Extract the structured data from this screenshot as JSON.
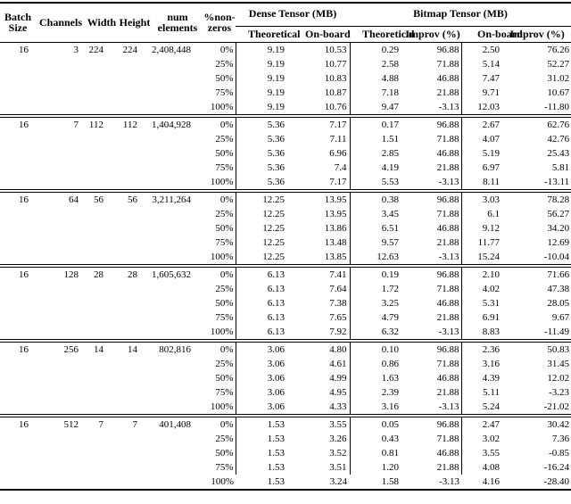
{
  "colors": {
    "text": "#000000",
    "background": "#ffffff",
    "rules": "#000000"
  },
  "table": {
    "header": {
      "batch_size": "Batch\nSize",
      "channels": "Channels",
      "width": "Width",
      "height": "Height",
      "num_elements": "num\nelements",
      "pct_nonzeros": "%non-\nzeros"
    },
    "groups": [
      {
        "label": "Dense Tensor (MB)",
        "span": 2
      },
      {
        "label": "Bitmap Tensor (MB)",
        "span": 4
      }
    ],
    "subheaders": [
      "Theoretical",
      "On-board",
      "Theoretical",
      "Improv (%)",
      "On-board",
      "Improv (%)"
    ],
    "blocks": [
      {
        "batch": "16",
        "channels": "3",
        "width": "224",
        "height": "224",
        "num_elements": "2,408,448",
        "rows": [
          {
            "nonzeros": "0%",
            "dense_theoretical": "9.19",
            "dense_onboard": "10.53",
            "bitmap_theoretical": "0.29",
            "bitmap_improv": "96.88",
            "bitmap_onboard": "2.50",
            "bitmap_onboard_improv": "76.26"
          },
          {
            "nonzeros": "25%",
            "dense_theoretical": "9.19",
            "dense_onboard": "10.77",
            "bitmap_theoretical": "2.58",
            "bitmap_improv": "71.88",
            "bitmap_onboard": "5.14",
            "bitmap_onboard_improv": "52.27"
          },
          {
            "nonzeros": "50%",
            "dense_theoretical": "9.19",
            "dense_onboard": "10.83",
            "bitmap_theoretical": "4.88",
            "bitmap_improv": "46.88",
            "bitmap_onboard": "7.47",
            "bitmap_onboard_improv": "31.02"
          },
          {
            "nonzeros": "75%",
            "dense_theoretical": "9.19",
            "dense_onboard": "10.87",
            "bitmap_theoretical": "7.18",
            "bitmap_improv": "21.88",
            "bitmap_onboard": "9.71",
            "bitmap_onboard_improv": "10.67"
          },
          {
            "nonzeros": "100%",
            "dense_theoretical": "9.19",
            "dense_onboard": "10.76",
            "bitmap_theoretical": "9.47",
            "bitmap_improv": "-3.13",
            "bitmap_onboard": "12.03",
            "bitmap_onboard_improv": "-11.80"
          }
        ]
      },
      {
        "batch": "16",
        "channels": "7",
        "width": "112",
        "height": "112",
        "num_elements": "1,404,928",
        "rows": [
          {
            "nonzeros": "0%",
            "dense_theoretical": "5.36",
            "dense_onboard": "7.17",
            "bitmap_theoretical": "0.17",
            "bitmap_improv": "96.88",
            "bitmap_onboard": "2.67",
            "bitmap_onboard_improv": "62.76"
          },
          {
            "nonzeros": "25%",
            "dense_theoretical": "5.36",
            "dense_onboard": "7.11",
            "bitmap_theoretical": "1.51",
            "bitmap_improv": "71.88",
            "bitmap_onboard": "4.07",
            "bitmap_onboard_improv": "42.76"
          },
          {
            "nonzeros": "50%",
            "dense_theoretical": "5.36",
            "dense_onboard": "6.96",
            "bitmap_theoretical": "2.85",
            "bitmap_improv": "46.88",
            "bitmap_onboard": "5.19",
            "bitmap_onboard_improv": "25.43"
          },
          {
            "nonzeros": "75%",
            "dense_theoretical": "5.36",
            "dense_onboard": "7.4",
            "bitmap_theoretical": "4.19",
            "bitmap_improv": "21.88",
            "bitmap_onboard": "6.97",
            "bitmap_onboard_improv": "5.81"
          },
          {
            "nonzeros": "100%",
            "dense_theoretical": "5.36",
            "dense_onboard": "7.17",
            "bitmap_theoretical": "5.53",
            "bitmap_improv": "-3.13",
            "bitmap_onboard": "8.11",
            "bitmap_onboard_improv": "-13.11"
          }
        ]
      },
      {
        "batch": "16",
        "channels": "64",
        "width": "56",
        "height": "56",
        "num_elements": "3,211,264",
        "rows": [
          {
            "nonzeros": "0%",
            "dense_theoretical": "12.25",
            "dense_onboard": "13.95",
            "bitmap_theoretical": "0.38",
            "bitmap_improv": "96.88",
            "bitmap_onboard": "3.03",
            "bitmap_onboard_improv": "78.28"
          },
          {
            "nonzeros": "25%",
            "dense_theoretical": "12.25",
            "dense_onboard": "13.95",
            "bitmap_theoretical": "3.45",
            "bitmap_improv": "71.88",
            "bitmap_onboard": "6.1",
            "bitmap_onboard_improv": "56.27"
          },
          {
            "nonzeros": "50%",
            "dense_theoretical": "12.25",
            "dense_onboard": "13.86",
            "bitmap_theoretical": "6.51",
            "bitmap_improv": "46.88",
            "bitmap_onboard": "9.12",
            "bitmap_onboard_improv": "34.20"
          },
          {
            "nonzeros": "75%",
            "dense_theoretical": "12.25",
            "dense_onboard": "13.48",
            "bitmap_theoretical": "9.57",
            "bitmap_improv": "21.88",
            "bitmap_onboard": "11.77",
            "bitmap_onboard_improv": "12.69"
          },
          {
            "nonzeros": "100%",
            "dense_theoretical": "12.25",
            "dense_onboard": "13.85",
            "bitmap_theoretical": "12.63",
            "bitmap_improv": "-3.13",
            "bitmap_onboard": "15.24",
            "bitmap_onboard_improv": "-10.04"
          }
        ]
      },
      {
        "batch": "16",
        "channels": "128",
        "width": "28",
        "height": "28",
        "num_elements": "1,605,632",
        "rows": [
          {
            "nonzeros": "0%",
            "dense_theoretical": "6.13",
            "dense_onboard": "7.41",
            "bitmap_theoretical": "0.19",
            "bitmap_improv": "96.88",
            "bitmap_onboard": "2.10",
            "bitmap_onboard_improv": "71.66"
          },
          {
            "nonzeros": "25%",
            "dense_theoretical": "6.13",
            "dense_onboard": "7.64",
            "bitmap_theoretical": "1.72",
            "bitmap_improv": "71.88",
            "bitmap_onboard": "4.02",
            "bitmap_onboard_improv": "47.38"
          },
          {
            "nonzeros": "50%",
            "dense_theoretical": "6.13",
            "dense_onboard": "7.38",
            "bitmap_theoretical": "3.25",
            "bitmap_improv": "46.88",
            "bitmap_onboard": "5.31",
            "bitmap_onboard_improv": "28.05"
          },
          {
            "nonzeros": "75%",
            "dense_theoretical": "6.13",
            "dense_onboard": "7.65",
            "bitmap_theoretical": "4.79",
            "bitmap_improv": "21.88",
            "bitmap_onboard": "6.91",
            "bitmap_onboard_improv": "9.67"
          },
          {
            "nonzeros": "100%",
            "dense_theoretical": "6.13",
            "dense_onboard": "7.92",
            "bitmap_theoretical": "6.32",
            "bitmap_improv": "-3.13",
            "bitmap_onboard": "8.83",
            "bitmap_onboard_improv": "-11.49"
          }
        ]
      },
      {
        "batch": "16",
        "channels": "256",
        "width": "14",
        "height": "14",
        "num_elements": "802,816",
        "rows": [
          {
            "nonzeros": "0%",
            "dense_theoretical": "3.06",
            "dense_onboard": "4.80",
            "bitmap_theoretical": "0.10",
            "bitmap_improv": "96.88",
            "bitmap_onboard": "2.36",
            "bitmap_onboard_improv": "50.83"
          },
          {
            "nonzeros": "25%",
            "dense_theoretical": "3.06",
            "dense_onboard": "4.61",
            "bitmap_theoretical": "0.86",
            "bitmap_improv": "71.88",
            "bitmap_onboard": "3.16",
            "bitmap_onboard_improv": "31.45"
          },
          {
            "nonzeros": "50%",
            "dense_theoretical": "3.06",
            "dense_onboard": "4.99",
            "bitmap_theoretical": "1.63",
            "bitmap_improv": "46.88",
            "bitmap_onboard": "4.39",
            "bitmap_onboard_improv": "12.02"
          },
          {
            "nonzeros": "75%",
            "dense_theoretical": "3.06",
            "dense_onboard": "4.95",
            "bitmap_theoretical": "2.39",
            "bitmap_improv": "21.88",
            "bitmap_onboard": "5.11",
            "bitmap_onboard_improv": "-3.23"
          },
          {
            "nonzeros": "100%",
            "dense_theoretical": "3.06",
            "dense_onboard": "4.33",
            "bitmap_theoretical": "3.16",
            "bitmap_improv": "-3.13",
            "bitmap_onboard": "5.24",
            "bitmap_onboard_improv": "-21.02"
          }
        ]
      },
      {
        "batch": "16",
        "channels": "512",
        "width": "7",
        "height": "7",
        "num_elements": "401,408",
        "rows": [
          {
            "nonzeros": "0%",
            "dense_theoretical": "1.53",
            "dense_onboard": "3.55",
            "bitmap_theoretical": "0.05",
            "bitmap_improv": "96.88",
            "bitmap_onboard": "2.47",
            "bitmap_onboard_improv": "30.42"
          },
          {
            "nonzeros": "25%",
            "dense_theoretical": "1.53",
            "dense_onboard": "3.26",
            "bitmap_theoretical": "0.43",
            "bitmap_improv": "71.88",
            "bitmap_onboard": "3.02",
            "bitmap_onboard_improv": "7.36"
          },
          {
            "nonzeros": "50%",
            "dense_theoretical": "1.53",
            "dense_onboard": "3.52",
            "bitmap_theoretical": "0.81",
            "bitmap_improv": "46.88",
            "bitmap_onboard": "3.55",
            "bitmap_onboard_improv": "-0.85"
          },
          {
            "nonzeros": "75%",
            "dense_theoretical": "1.53",
            "dense_onboard": "3.51",
            "bitmap_theoretical": "1.20",
            "bitmap_improv": "21.88",
            "bitmap_onboard": "4.08",
            "bitmap_onboard_improv": "-16.24"
          },
          {
            "nonzeros": "100%",
            "dense_theoretical": "1.53",
            "dense_onboard": "3.24",
            "bitmap_theoretical": "1.58",
            "bitmap_improv": "-3.13",
            "bitmap_onboard": "4.16",
            "bitmap_onboard_improv": "-28.40"
          }
        ]
      }
    ]
  }
}
